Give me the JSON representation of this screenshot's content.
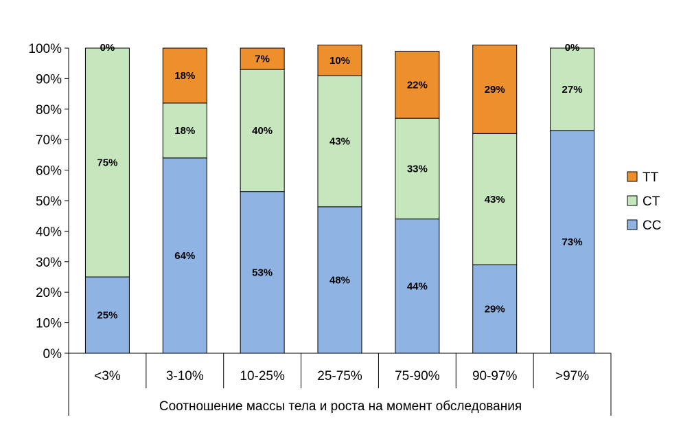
{
  "chart_data": {
    "type": "bar",
    "stacked": true,
    "percent": true,
    "categories": [
      "<3%",
      "3-10%",
      "10-25%",
      "25-75%",
      "75-90%",
      "90-97%",
      ">97%"
    ],
    "series": [
      {
        "name": "CC",
        "values": [
          25,
          64,
          53,
          48,
          44,
          29,
          73
        ],
        "labels": [
          "25%",
          "64%",
          "53%",
          "48%",
          "44%",
          "29%",
          "73%"
        ]
      },
      {
        "name": "CT",
        "values": [
          75,
          18,
          40,
          43,
          33,
          43,
          27
        ],
        "labels": [
          "75%",
          "18%",
          "40%",
          "43%",
          "33%",
          "43%",
          "27%"
        ]
      },
      {
        "name": "TT",
        "values": [
          0,
          18,
          7,
          10,
          22,
          29,
          0
        ],
        "labels": [
          "0%",
          "18%",
          "7%",
          "10%",
          "22%",
          "29%",
          "0%"
        ]
      }
    ],
    "title": "",
    "xlabel": "Соотношение массы тела и роста на момент обследования",
    "ylabel": "",
    "ylim": [
      0,
      100
    ],
    "yticks": [
      "0%",
      "10%",
      "20%",
      "30%",
      "40%",
      "50%",
      "60%",
      "70%",
      "80%",
      "90%",
      "100%"
    ],
    "legend_placement": "right",
    "legend_order": [
      "TT",
      "CT",
      "CC"
    ],
    "grid": false,
    "colors": {
      "CC": "#8fb4e3",
      "CT": "#c6e7bd",
      "TT": "#ee8f2e"
    }
  }
}
